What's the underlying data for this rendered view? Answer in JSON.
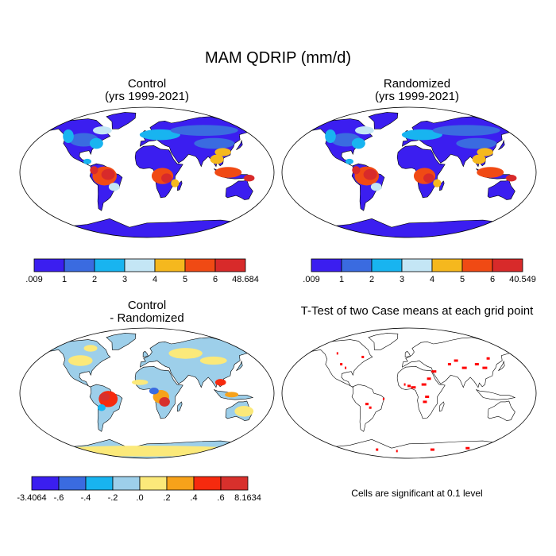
{
  "title": "MAM QDRIP (mm/d)",
  "panels": [
    {
      "id": "control",
      "title_line1": "Control",
      "title_line2": "(yrs 1999-2021)",
      "colorbar": {
        "labels": [
          ".009",
          "1",
          "2",
          "3",
          "4",
          "5",
          "6",
          "48.684"
        ],
        "colors": [
          "#3b1ef0",
          "#3a6be0",
          "#18b4f0",
          "#c4e6f5",
          "#f5b81e",
          "#f04a14",
          "#d82a2a"
        ]
      }
    },
    {
      "id": "randomized",
      "title_line1": "Randomized",
      "title_line2": "(yrs 1999-2021)",
      "colorbar": {
        "labels": [
          ".009",
          "1",
          "2",
          "3",
          "4",
          "5",
          "6",
          "40.549"
        ],
        "colors": [
          "#3b1ef0",
          "#3a6be0",
          "#18b4f0",
          "#c4e6f5",
          "#f5b81e",
          "#f04a14",
          "#d82a2a"
        ]
      }
    },
    {
      "id": "difference",
      "title_line1": "Control",
      "title_line2": "- Randomized",
      "colorbar": {
        "labels": [
          "-3.4064",
          "-.6",
          "-.4",
          "-.2",
          ".0",
          ".2",
          ".4",
          ".6",
          "8.1634"
        ],
        "colors": [
          "#3b1ef0",
          "#3a6be0",
          "#18b4f0",
          "#9dcfea",
          "#fbe97a",
          "#f7a21a",
          "#f62a0e",
          "#d8302c"
        ]
      }
    },
    {
      "id": "ttest",
      "title_line1": "T-Test of two Case means at each grid point",
      "note": "Cells are significant at 0.1 level",
      "significant_color": "#ff0000"
    }
  ],
  "map_colors": {
    "ocean": "#ffffff",
    "coastline": "#000000"
  }
}
